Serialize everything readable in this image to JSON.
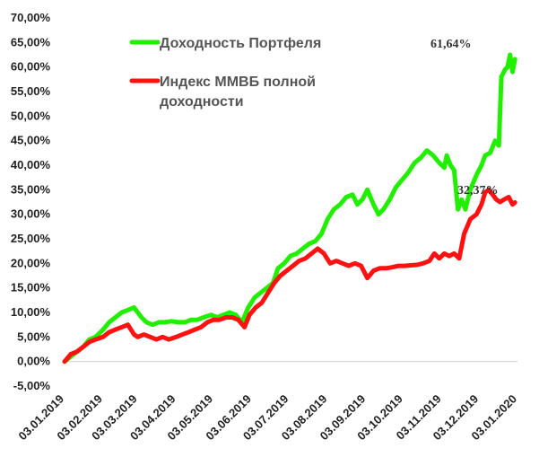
{
  "chart_data": {
    "type": "line",
    "title": "",
    "xlabel": "",
    "ylabel": "",
    "ylim": [
      -0.05,
      0.7
    ],
    "y_ticks": [
      -0.05,
      0,
      0.05,
      0.1,
      0.15,
      0.2,
      0.25,
      0.3,
      0.35,
      0.4,
      0.45,
      0.5,
      0.55,
      0.6,
      0.65,
      0.7
    ],
    "y_tick_labels": [
      "-5,00%",
      "0,00%",
      "5,00%",
      "10,00%",
      "15,00%",
      "20,00%",
      "25,00%",
      "30,00%",
      "35,00%",
      "40,00%",
      "45,00%",
      "50,00%",
      "55,00%",
      "60,00%",
      "65,00%",
      "70,00%"
    ],
    "x_ticks": [
      "2019-01-03",
      "2019-02-03",
      "2019-03-03",
      "2019-04-03",
      "2019-05-03",
      "2019-06-03",
      "2019-07-03",
      "2019-08-03",
      "2019-09-03",
      "2019-10-03",
      "2019-11-03",
      "2019-12-03",
      "2020-01-03"
    ],
    "x_tick_labels": [
      "03.01.2019",
      "03.02.2019",
      "03.03.2019",
      "03.04.2019",
      "03.05.2019",
      "03.06.2019",
      "03.07.2019",
      "03.08.2019",
      "03.09.2019",
      "03.10.2019",
      "03.11.2019",
      "03.12.2019",
      "03.01.2020"
    ],
    "xlim": [
      "2019-01-03",
      "2020-01-03"
    ],
    "grid": false,
    "legend_position": "top-center",
    "series": [
      {
        "name": "Доходность Портфеля",
        "color": "#22ee00",
        "end_label": "61,64%",
        "points": [
          [
            "2019-01-03",
            0.0
          ],
          [
            "2019-01-08",
            0.01
          ],
          [
            "2019-01-13",
            0.02
          ],
          [
            "2019-01-18",
            0.03
          ],
          [
            "2019-01-23",
            0.045
          ],
          [
            "2019-01-28",
            0.05
          ],
          [
            "2019-02-03",
            0.065
          ],
          [
            "2019-02-08",
            0.08
          ],
          [
            "2019-02-13",
            0.09
          ],
          [
            "2019-02-18",
            0.1
          ],
          [
            "2019-02-23",
            0.105
          ],
          [
            "2019-02-28",
            0.11
          ],
          [
            "2019-03-03",
            0.1
          ],
          [
            "2019-03-06",
            0.09
          ],
          [
            "2019-03-10",
            0.08
          ],
          [
            "2019-03-15",
            0.075
          ],
          [
            "2019-03-20",
            0.08
          ],
          [
            "2019-03-25",
            0.08
          ],
          [
            "2019-03-30",
            0.082
          ],
          [
            "2019-04-05",
            0.08
          ],
          [
            "2019-04-10",
            0.08
          ],
          [
            "2019-04-15",
            0.085
          ],
          [
            "2019-04-20",
            0.085
          ],
          [
            "2019-04-25",
            0.09
          ],
          [
            "2019-05-01",
            0.095
          ],
          [
            "2019-05-06",
            0.09
          ],
          [
            "2019-05-11",
            0.095
          ],
          [
            "2019-05-16",
            0.1
          ],
          [
            "2019-05-21",
            0.095
          ],
          [
            "2019-05-26",
            0.08
          ],
          [
            "2019-05-31",
            0.11
          ],
          [
            "2019-06-05",
            0.13
          ],
          [
            "2019-06-10",
            0.14
          ],
          [
            "2019-06-15",
            0.15
          ],
          [
            "2019-06-20",
            0.16
          ],
          [
            "2019-06-24",
            0.19
          ],
          [
            "2019-06-29",
            0.2
          ],
          [
            "2019-07-04",
            0.215
          ],
          [
            "2019-07-09",
            0.22
          ],
          [
            "2019-07-14",
            0.23
          ],
          [
            "2019-07-19",
            0.24
          ],
          [
            "2019-07-24",
            0.245
          ],
          [
            "2019-07-29",
            0.26
          ],
          [
            "2019-08-03",
            0.29
          ],
          [
            "2019-08-08",
            0.31
          ],
          [
            "2019-08-13",
            0.32
          ],
          [
            "2019-08-18",
            0.335
          ],
          [
            "2019-08-23",
            0.34
          ],
          [
            "2019-08-27",
            0.32
          ],
          [
            "2019-08-31",
            0.33
          ],
          [
            "2019-09-04",
            0.35
          ],
          [
            "2019-09-09",
            0.32
          ],
          [
            "2019-09-13",
            0.3
          ],
          [
            "2019-09-17",
            0.31
          ],
          [
            "2019-09-22",
            0.33
          ],
          [
            "2019-09-27",
            0.355
          ],
          [
            "2019-10-02",
            0.37
          ],
          [
            "2019-10-07",
            0.385
          ],
          [
            "2019-10-12",
            0.405
          ],
          [
            "2019-10-17",
            0.415
          ],
          [
            "2019-10-22",
            0.43
          ],
          [
            "2019-10-27",
            0.42
          ],
          [
            "2019-11-01",
            0.405
          ],
          [
            "2019-11-05",
            0.395
          ],
          [
            "2019-11-07",
            0.42
          ],
          [
            "2019-11-10",
            0.4
          ],
          [
            "2019-11-13",
            0.39
          ],
          [
            "2019-11-16",
            0.31
          ],
          [
            "2019-11-19",
            0.33
          ],
          [
            "2019-11-22",
            0.31
          ],
          [
            "2019-11-26",
            0.35
          ],
          [
            "2019-12-01",
            0.38
          ],
          [
            "2019-12-05",
            0.4
          ],
          [
            "2019-12-08",
            0.42
          ],
          [
            "2019-12-12",
            0.425
          ],
          [
            "2019-12-16",
            0.45
          ],
          [
            "2019-12-19",
            0.44
          ],
          [
            "2019-12-21",
            0.58
          ],
          [
            "2019-12-24",
            0.595
          ],
          [
            "2019-12-26",
            0.6
          ],
          [
            "2019-12-28",
            0.625
          ],
          [
            "2019-12-30",
            0.59
          ],
          [
            "2020-01-01",
            0.616
          ]
        ]
      },
      {
        "name": "Индекс ММВБ полной доходности",
        "color": "#ff1111",
        "end_label": "32,37%",
        "points": [
          [
            "2019-01-03",
            0.0
          ],
          [
            "2019-01-08",
            0.015
          ],
          [
            "2019-01-13",
            0.02
          ],
          [
            "2019-01-18",
            0.03
          ],
          [
            "2019-01-23",
            0.04
          ],
          [
            "2019-01-28",
            0.045
          ],
          [
            "2019-02-03",
            0.05
          ],
          [
            "2019-02-08",
            0.06
          ],
          [
            "2019-02-13",
            0.065
          ],
          [
            "2019-02-18",
            0.07
          ],
          [
            "2019-02-23",
            0.075
          ],
          [
            "2019-02-28",
            0.055
          ],
          [
            "2019-03-03",
            0.05
          ],
          [
            "2019-03-08",
            0.055
          ],
          [
            "2019-03-13",
            0.05
          ],
          [
            "2019-03-18",
            0.045
          ],
          [
            "2019-03-23",
            0.05
          ],
          [
            "2019-03-28",
            0.045
          ],
          [
            "2019-04-03",
            0.05
          ],
          [
            "2019-04-08",
            0.055
          ],
          [
            "2019-04-13",
            0.06
          ],
          [
            "2019-04-18",
            0.065
          ],
          [
            "2019-04-23",
            0.07
          ],
          [
            "2019-04-28",
            0.08
          ],
          [
            "2019-05-03",
            0.085
          ],
          [
            "2019-05-08",
            0.085
          ],
          [
            "2019-05-13",
            0.09
          ],
          [
            "2019-05-18",
            0.09
          ],
          [
            "2019-05-23",
            0.085
          ],
          [
            "2019-05-28",
            0.07
          ],
          [
            "2019-06-01",
            0.095
          ],
          [
            "2019-06-06",
            0.11
          ],
          [
            "2019-06-11",
            0.12
          ],
          [
            "2019-06-16",
            0.14
          ],
          [
            "2019-06-21",
            0.16
          ],
          [
            "2019-06-26",
            0.175
          ],
          [
            "2019-07-01",
            0.185
          ],
          [
            "2019-07-06",
            0.195
          ],
          [
            "2019-07-11",
            0.205
          ],
          [
            "2019-07-16",
            0.21
          ],
          [
            "2019-07-21",
            0.22
          ],
          [
            "2019-07-26",
            0.23
          ],
          [
            "2019-07-31",
            0.22
          ],
          [
            "2019-08-05",
            0.2
          ],
          [
            "2019-08-10",
            0.205
          ],
          [
            "2019-08-15",
            0.2
          ],
          [
            "2019-08-20",
            0.195
          ],
          [
            "2019-08-25",
            0.2
          ],
          [
            "2019-08-30",
            0.195
          ],
          [
            "2019-09-04",
            0.17
          ],
          [
            "2019-09-09",
            0.185
          ],
          [
            "2019-09-14",
            0.19
          ],
          [
            "2019-09-19",
            0.19
          ],
          [
            "2019-09-24",
            0.192
          ],
          [
            "2019-09-29",
            0.195
          ],
          [
            "2019-10-04",
            0.195
          ],
          [
            "2019-10-09",
            0.196
          ],
          [
            "2019-10-14",
            0.197
          ],
          [
            "2019-10-19",
            0.2
          ],
          [
            "2019-10-24",
            0.205
          ],
          [
            "2019-10-28",
            0.22
          ],
          [
            "2019-11-01",
            0.21
          ],
          [
            "2019-11-05",
            0.22
          ],
          [
            "2019-11-09",
            0.215
          ],
          [
            "2019-11-13",
            0.22
          ],
          [
            "2019-11-17",
            0.21
          ],
          [
            "2019-11-21",
            0.26
          ],
          [
            "2019-11-26",
            0.29
          ],
          [
            "2019-12-01",
            0.3
          ],
          [
            "2019-12-05",
            0.32
          ],
          [
            "2019-12-08",
            0.345
          ],
          [
            "2019-12-11",
            0.35
          ],
          [
            "2019-12-14",
            0.34
          ],
          [
            "2019-12-17",
            0.33
          ],
          [
            "2019-12-20",
            0.325
          ],
          [
            "2019-12-23",
            0.33
          ],
          [
            "2019-12-27",
            0.335
          ],
          [
            "2019-12-30",
            0.32
          ],
          [
            "2020-01-01",
            0.324
          ]
        ]
      }
    ]
  }
}
